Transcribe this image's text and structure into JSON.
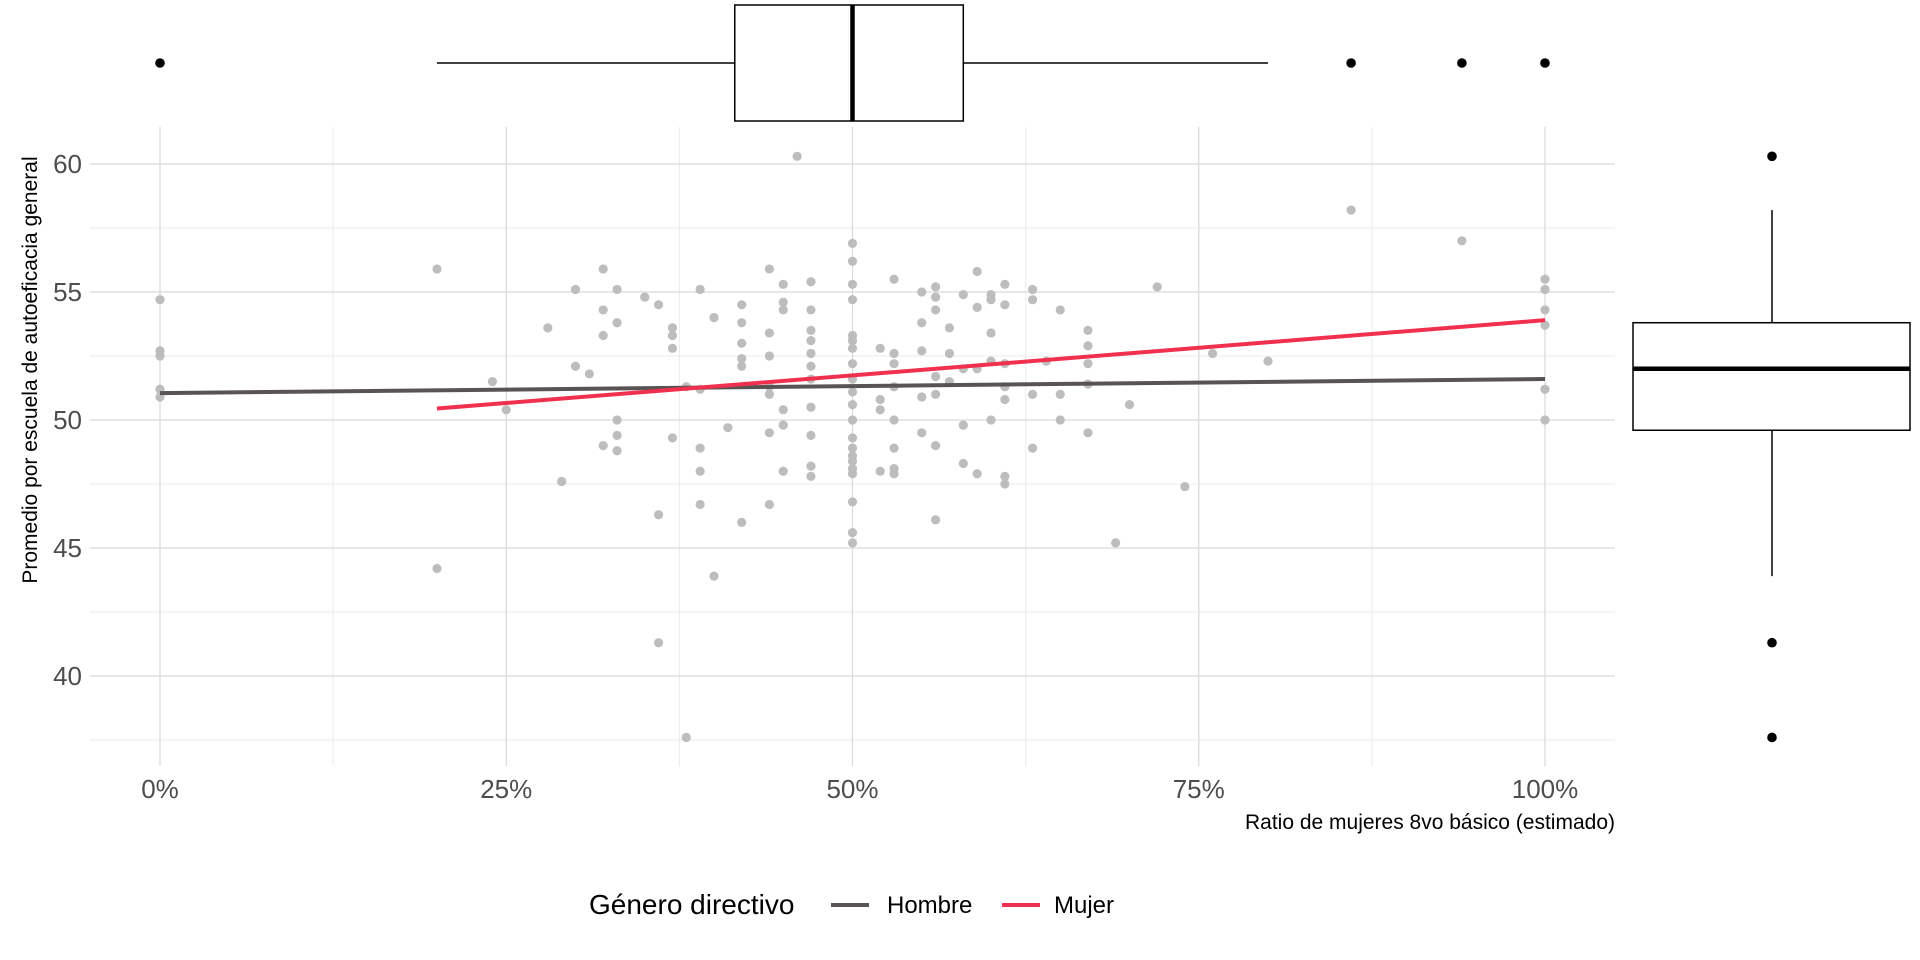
{
  "chart_data": {
    "type": "scatter",
    "xlabel": "Ratio de mujeres 8vo básico (estimado)",
    "ylabel": "Promedio por escuela de autoeficacia general",
    "xlim": [
      -0.05,
      1.05
    ],
    "ylim": [
      36.8,
      62.0
    ],
    "x_ticks": [
      0,
      0.25,
      0.5,
      0.75,
      1.0
    ],
    "x_tick_labels": [
      "0%",
      "25%",
      "50%",
      "75%",
      "100%"
    ],
    "y_ticks": [
      40,
      45,
      50,
      55,
      60
    ],
    "y_tick_labels": [
      "40",
      "45",
      "50",
      "55",
      "60"
    ],
    "grid": true,
    "point_color": "#bdbdbd",
    "points": [
      [
        0.0,
        54.7
      ],
      [
        0.0,
        52.7
      ],
      [
        0.0,
        52.5
      ],
      [
        0.0,
        51.2
      ],
      [
        0.0,
        50.9
      ],
      [
        0.2,
        55.9
      ],
      [
        0.2,
        44.2
      ],
      [
        0.24,
        51.5
      ],
      [
        0.25,
        50.4
      ],
      [
        0.28,
        53.6
      ],
      [
        0.29,
        47.6
      ],
      [
        0.3,
        55.1
      ],
      [
        0.3,
        52.1
      ],
      [
        0.31,
        51.8
      ],
      [
        0.32,
        55.9
      ],
      [
        0.32,
        54.3
      ],
      [
        0.32,
        53.3
      ],
      [
        0.32,
        49.0
      ],
      [
        0.33,
        55.1
      ],
      [
        0.33,
        53.8
      ],
      [
        0.33,
        50.0
      ],
      [
        0.33,
        49.4
      ],
      [
        0.33,
        48.8
      ],
      [
        0.35,
        54.8
      ],
      [
        0.36,
        54.5
      ],
      [
        0.36,
        46.3
      ],
      [
        0.36,
        41.3
      ],
      [
        0.37,
        53.6
      ],
      [
        0.37,
        53.3
      ],
      [
        0.37,
        52.8
      ],
      [
        0.37,
        49.3
      ],
      [
        0.38,
        51.3
      ],
      [
        0.38,
        37.6
      ],
      [
        0.39,
        55.1
      ],
      [
        0.39,
        51.2
      ],
      [
        0.39,
        48.9
      ],
      [
        0.39,
        48.0
      ],
      [
        0.39,
        46.7
      ],
      [
        0.4,
        54.0
      ],
      [
        0.4,
        43.9
      ],
      [
        0.41,
        49.7
      ],
      [
        0.42,
        54.5
      ],
      [
        0.42,
        53.8
      ],
      [
        0.42,
        53.0
      ],
      [
        0.42,
        52.4
      ],
      [
        0.42,
        52.1
      ],
      [
        0.42,
        46.0
      ],
      [
        0.44,
        55.9
      ],
      [
        0.44,
        53.4
      ],
      [
        0.44,
        52.5
      ],
      [
        0.44,
        51.3
      ],
      [
        0.44,
        51.0
      ],
      [
        0.44,
        49.5
      ],
      [
        0.44,
        46.7
      ],
      [
        0.45,
        55.3
      ],
      [
        0.45,
        54.6
      ],
      [
        0.45,
        54.3
      ],
      [
        0.45,
        50.4
      ],
      [
        0.45,
        49.8
      ],
      [
        0.45,
        48.0
      ],
      [
        0.46,
        60.3
      ],
      [
        0.47,
        55.4
      ],
      [
        0.47,
        54.3
      ],
      [
        0.47,
        53.5
      ],
      [
        0.47,
        53.1
      ],
      [
        0.47,
        52.6
      ],
      [
        0.47,
        52.1
      ],
      [
        0.47,
        51.6
      ],
      [
        0.47,
        50.5
      ],
      [
        0.47,
        49.4
      ],
      [
        0.47,
        48.2
      ],
      [
        0.47,
        47.8
      ],
      [
        0.5,
        56.9
      ],
      [
        0.5,
        56.2
      ],
      [
        0.5,
        55.3
      ],
      [
        0.5,
        54.7
      ],
      [
        0.5,
        53.3
      ],
      [
        0.5,
        53.1
      ],
      [
        0.5,
        52.8
      ],
      [
        0.5,
        52.2
      ],
      [
        0.5,
        51.6
      ],
      [
        0.5,
        51.1
      ],
      [
        0.5,
        50.6
      ],
      [
        0.5,
        50.0
      ],
      [
        0.5,
        49.3
      ],
      [
        0.5,
        48.9
      ],
      [
        0.5,
        48.6
      ],
      [
        0.5,
        48.4
      ],
      [
        0.5,
        48.1
      ],
      [
        0.5,
        47.9
      ],
      [
        0.5,
        46.8
      ],
      [
        0.5,
        45.6
      ],
      [
        0.5,
        45.2
      ],
      [
        0.52,
        52.8
      ],
      [
        0.52,
        50.8
      ],
      [
        0.52,
        50.4
      ],
      [
        0.52,
        48.0
      ],
      [
        0.53,
        55.5
      ],
      [
        0.53,
        52.6
      ],
      [
        0.53,
        52.2
      ],
      [
        0.53,
        51.3
      ],
      [
        0.53,
        50.0
      ],
      [
        0.53,
        48.9
      ],
      [
        0.53,
        48.1
      ],
      [
        0.53,
        47.9
      ],
      [
        0.55,
        55.0
      ],
      [
        0.55,
        53.8
      ],
      [
        0.55,
        52.7
      ],
      [
        0.55,
        50.9
      ],
      [
        0.55,
        49.5
      ],
      [
        0.56,
        54.8
      ],
      [
        0.56,
        54.3
      ],
      [
        0.56,
        51.7
      ],
      [
        0.56,
        51.0
      ],
      [
        0.56,
        49.0
      ],
      [
        0.56,
        46.1
      ],
      [
        0.56,
        55.2
      ],
      [
        0.57,
        53.6
      ],
      [
        0.57,
        52.6
      ],
      [
        0.57,
        51.5
      ],
      [
        0.58,
        54.9
      ],
      [
        0.58,
        52.0
      ],
      [
        0.58,
        49.8
      ],
      [
        0.58,
        48.3
      ],
      [
        0.59,
        55.8
      ],
      [
        0.59,
        54.4
      ],
      [
        0.59,
        52.0
      ],
      [
        0.59,
        47.9
      ],
      [
        0.6,
        54.9
      ],
      [
        0.6,
        54.7
      ],
      [
        0.6,
        53.4
      ],
      [
        0.6,
        52.3
      ],
      [
        0.6,
        50.0
      ],
      [
        0.61,
        55.3
      ],
      [
        0.61,
        54.5
      ],
      [
        0.61,
        52.2
      ],
      [
        0.61,
        51.3
      ],
      [
        0.61,
        50.8
      ],
      [
        0.61,
        47.8
      ],
      [
        0.61,
        47.5
      ],
      [
        0.63,
        55.1
      ],
      [
        0.63,
        54.7
      ],
      [
        0.63,
        51.0
      ],
      [
        0.63,
        48.9
      ],
      [
        0.64,
        52.3
      ],
      [
        0.65,
        54.3
      ],
      [
        0.65,
        51.0
      ],
      [
        0.65,
        50.0
      ],
      [
        0.67,
        53.5
      ],
      [
        0.67,
        52.9
      ],
      [
        0.67,
        52.2
      ],
      [
        0.67,
        51.4
      ],
      [
        0.67,
        49.5
      ],
      [
        0.69,
        45.2
      ],
      [
        0.7,
        50.6
      ],
      [
        0.72,
        55.2
      ],
      [
        0.74,
        47.4
      ],
      [
        0.76,
        52.6
      ],
      [
        0.8,
        52.3
      ],
      [
        0.86,
        58.2
      ],
      [
        0.94,
        57.0
      ],
      [
        1.0,
        55.5
      ],
      [
        1.0,
        55.1
      ],
      [
        1.0,
        54.3
      ],
      [
        1.0,
        53.7
      ],
      [
        1.0,
        51.2
      ],
      [
        1.0,
        50.0
      ]
    ],
    "series": [
      {
        "name": "Hombre",
        "color": "#5a5353",
        "x": [
          0.0,
          1.0
        ],
        "y": [
          51.05,
          51.6
        ]
      },
      {
        "name": "Mujer",
        "color": "#f0304e",
        "x": [
          0.2,
          1.0
        ],
        "y": [
          50.45,
          53.9
        ]
      }
    ],
    "legend": {
      "title": "Género directivo",
      "position": "bottom",
      "entries": [
        "Hombre",
        "Mujer"
      ]
    },
    "x_marginal_boxplot": {
      "min": 0.2,
      "q1": 0.415,
      "median": 0.5,
      "q3": 0.58,
      "max": 0.8,
      "outliers": [
        0.0,
        0.86,
        0.94,
        1.0
      ]
    },
    "y_marginal_boxplot": {
      "min": 43.9,
      "q1": 49.6,
      "median": 52.0,
      "q3": 53.8,
      "max": 58.2,
      "outliers": [
        60.3,
        41.3,
        37.6
      ]
    }
  }
}
